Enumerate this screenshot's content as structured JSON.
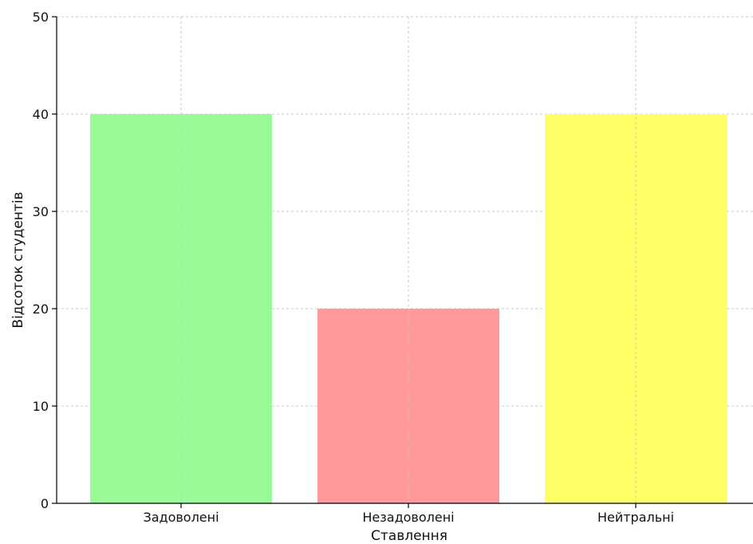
{
  "chart_data": {
    "type": "bar",
    "title": "",
    "xlabel": "Ставлення",
    "ylabel": "Відсоток студентів",
    "categories": [
      "Задоволені",
      "Незадоволені",
      "Нейтральні"
    ],
    "values": [
      40,
      20,
      40
    ],
    "colors": [
      "#98fb98",
      "#ff9999",
      "#ffff66"
    ],
    "ylim": [
      0,
      50
    ],
    "yticks": [
      0,
      10,
      20,
      30,
      40,
      50
    ],
    "grid": true
  }
}
